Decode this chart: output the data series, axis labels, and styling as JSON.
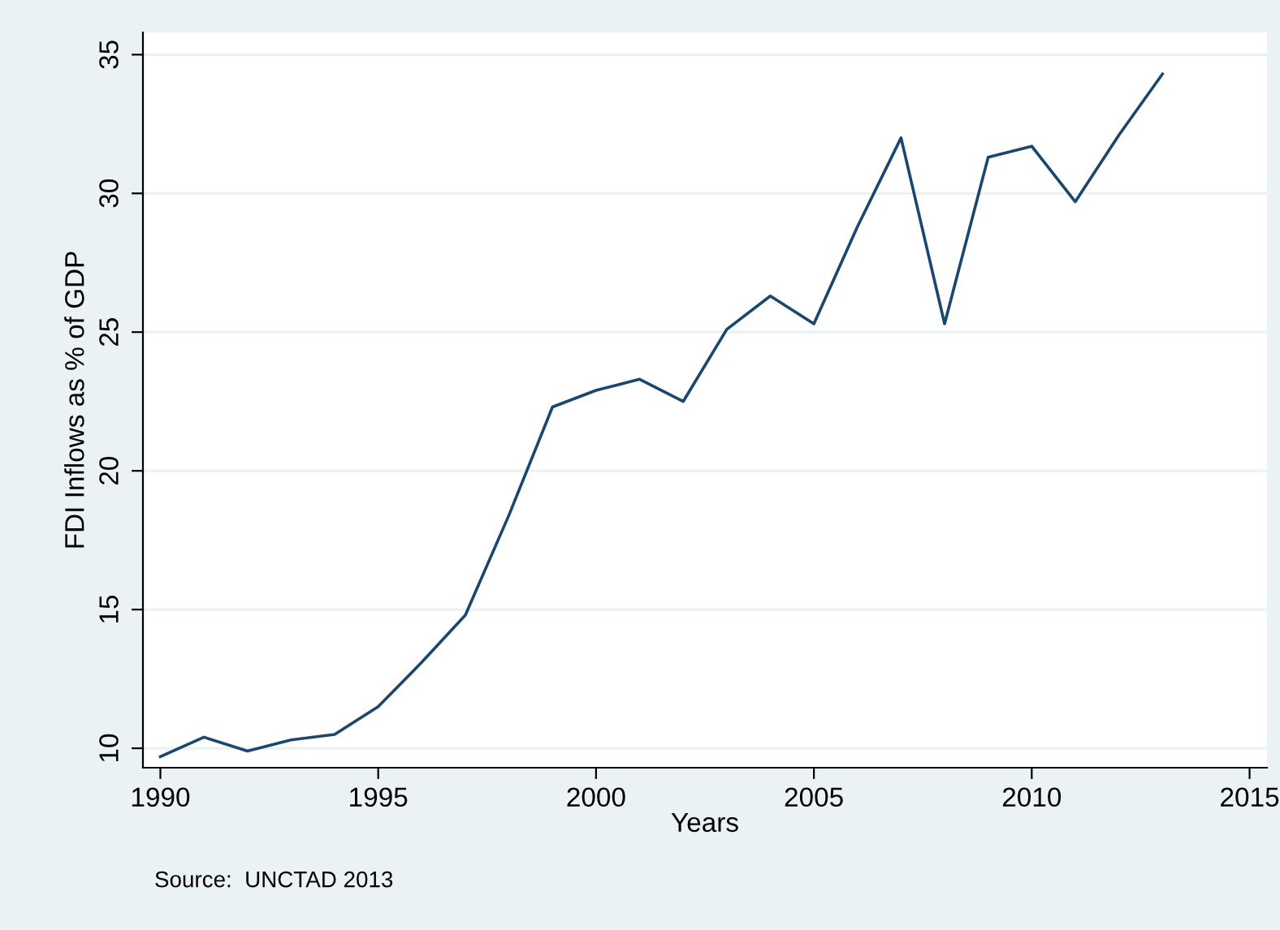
{
  "chart_data": {
    "type": "line",
    "xlabel": "Years",
    "ylabel": "FDI Inflows as % of GDP",
    "x": [
      1990,
      1991,
      1992,
      1993,
      1994,
      1995,
      1996,
      1997,
      1998,
      1999,
      2000,
      2001,
      2002,
      2003,
      2004,
      2005,
      2006,
      2007,
      2008,
      2009,
      2010,
      2011,
      2012,
      2013
    ],
    "series": [
      {
        "color": "#1a476f",
        "values": [
          9.7,
          10.4,
          9.9,
          10.3,
          10.5,
          11.5,
          13.1,
          14.8,
          18.4,
          22.3,
          22.9,
          23.3,
          22.5,
          25.1,
          26.3,
          25.3,
          28.8,
          32.0,
          25.3,
          31.3,
          31.7,
          29.7,
          32.1,
          34.3
        ]
      }
    ],
    "xlim": [
      1989.6,
      2015.4
    ],
    "ylim": [
      9.3,
      35.8
    ],
    "xticks": [
      1990,
      1995,
      2000,
      2005,
      2010,
      2015
    ],
    "yticks": [
      10,
      15,
      20,
      25,
      30,
      35
    ],
    "grid": "y",
    "legend": false,
    "marker": "none",
    "line_style": "solid",
    "annotations": [
      "Source:  UNCTAD 2013"
    ]
  }
}
